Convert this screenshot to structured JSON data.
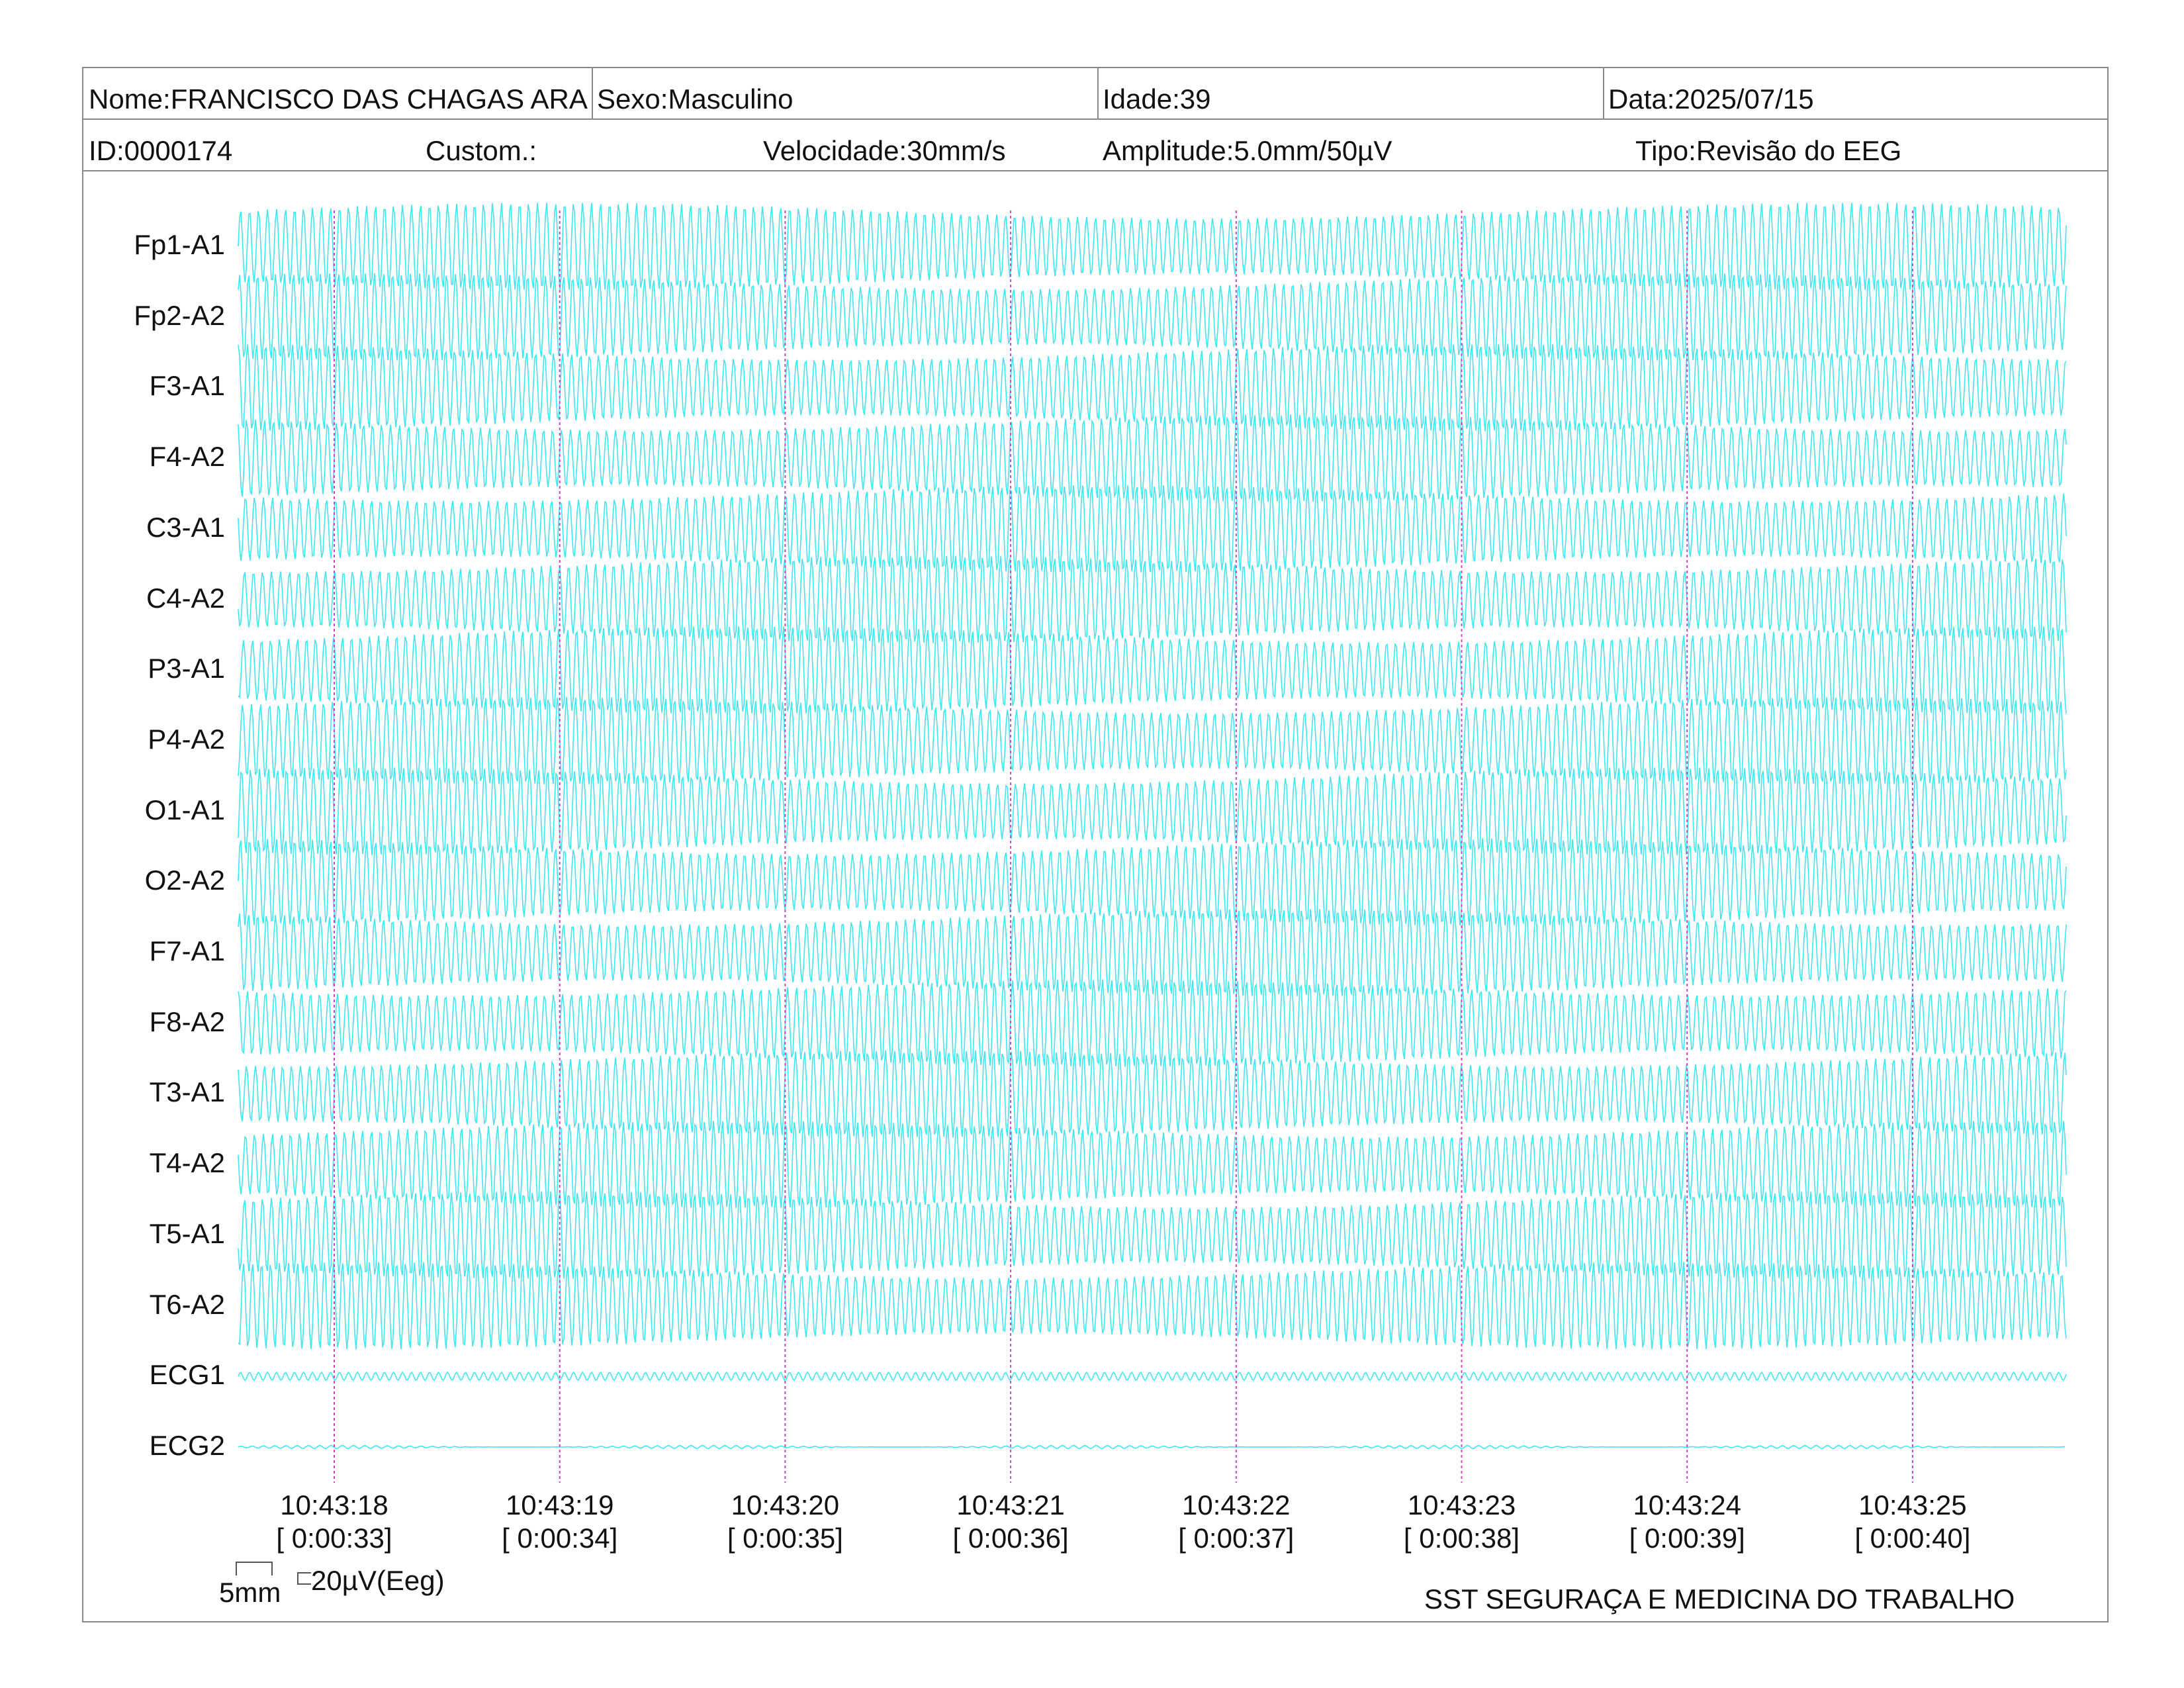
{
  "header": {
    "nome": "Nome:FRANCISCO DAS CHAGAS ARA",
    "sexo": "Sexo:Masculino",
    "idade": "Idade:39",
    "data": "Data:2025/07/15",
    "id": "ID:0000174",
    "custom": "Custom.:",
    "velocidade": "Velocidade:30mm/s",
    "amplitude": "Amplitude:5.0mm/50µV",
    "tipo": "Tipo:Revisão do EEG"
  },
  "channels": [
    {
      "label": "Fp1-A1",
      "type": "eeg"
    },
    {
      "label": "Fp2-A2",
      "type": "eeg"
    },
    {
      "label": "F3-A1",
      "type": "eeg"
    },
    {
      "label": "F4-A2",
      "type": "eeg"
    },
    {
      "label": "C3-A1",
      "type": "eeg"
    },
    {
      "label": "C4-A2",
      "type": "eeg"
    },
    {
      "label": "P3-A1",
      "type": "eeg"
    },
    {
      "label": "P4-A2",
      "type": "eeg"
    },
    {
      "label": "O1-A1",
      "type": "eeg"
    },
    {
      "label": "O2-A2",
      "type": "eeg"
    },
    {
      "label": "F7-A1",
      "type": "eeg"
    },
    {
      "label": "F8-A2",
      "type": "eeg"
    },
    {
      "label": "T3-A1",
      "type": "eeg"
    },
    {
      "label": "T4-A2",
      "type": "eeg"
    },
    {
      "label": "T5-A1",
      "type": "eeg"
    },
    {
      "label": "T6-A2",
      "type": "eeg"
    },
    {
      "label": "ECG1",
      "type": "ecg"
    },
    {
      "label": "ECG2",
      "type": "ecg"
    }
  ],
  "time_marks": [
    {
      "clock": "10:43:18",
      "elapsed": "[ 0:00:33]"
    },
    {
      "clock": "10:43:19",
      "elapsed": "[ 0:00:34]"
    },
    {
      "clock": "10:43:20",
      "elapsed": "[ 0:00:35]"
    },
    {
      "clock": "10:43:21",
      "elapsed": "[ 0:00:36]"
    },
    {
      "clock": "10:43:22",
      "elapsed": "[ 0:00:37]"
    },
    {
      "clock": "10:43:23",
      "elapsed": "[ 0:00:38]"
    },
    {
      "clock": "10:43:24",
      "elapsed": "[ 0:00:39]"
    },
    {
      "clock": "10:43:25",
      "elapsed": "[ 0:00:40]"
    }
  ],
  "scale": {
    "time_bar": "5mm",
    "amp_bar": "20µV(Eeg)"
  },
  "footer": {
    "clinic": "SST SEGURAÇA E MEDICINA DO TRABALHO"
  },
  "colors": {
    "trace": "#28e6ee",
    "marker": "#cc44cc",
    "border": "#888888"
  }
}
